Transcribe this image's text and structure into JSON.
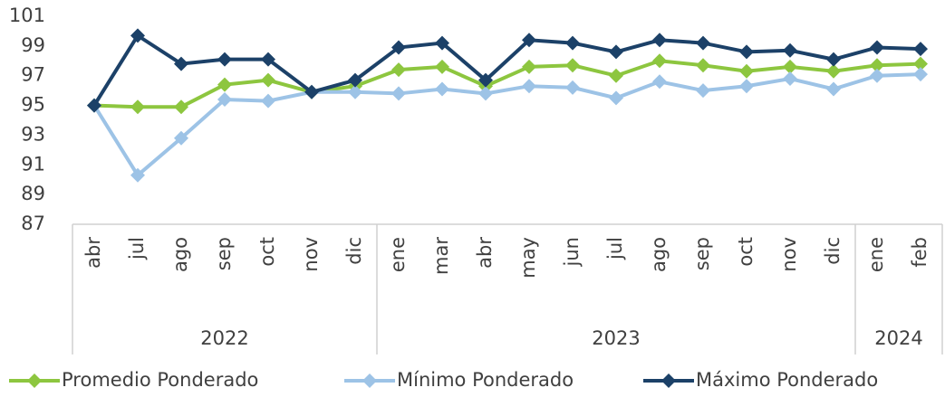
{
  "chart_data": {
    "type": "line",
    "groups": [
      {
        "name": "2022",
        "categories": [
          "abr",
          "jul",
          "ago",
          "sep",
          "oct",
          "nov",
          "dic"
        ]
      },
      {
        "name": "2023",
        "categories": [
          "ene",
          "mar",
          "abr",
          "may",
          "jun",
          "jul",
          "ago",
          "sep",
          "oct",
          "nov",
          "dic"
        ]
      },
      {
        "name": "2024",
        "categories": [
          "ene",
          "feb"
        ]
      }
    ],
    "series": [
      {
        "name": "Promedio Ponderado",
        "color": "#8dc63f",
        "values": [
          95,
          94.9,
          94.9,
          96.4,
          96.7,
          95.9,
          96.3,
          97.4,
          97.6,
          96.3,
          97.6,
          97.7,
          97.0,
          98.0,
          97.7,
          97.3,
          97.6,
          97.3,
          97.7,
          97.8
        ]
      },
      {
        "name": "Mínimo Ponderado",
        "color": "#9dc3e6",
        "values": [
          95,
          90.3,
          92.8,
          95.4,
          95.3,
          95.9,
          95.9,
          95.8,
          96.1,
          95.8,
          96.3,
          96.2,
          95.5,
          96.6,
          96.0,
          96.3,
          96.8,
          96.1,
          97.0,
          97.1
        ]
      },
      {
        "name": "Máximo Ponderado",
        "color": "#1c4168",
        "values": [
          95,
          99.7,
          97.8,
          98.1,
          98.1,
          95.9,
          96.7,
          98.9,
          99.2,
          96.7,
          99.4,
          99.2,
          98.6,
          99.4,
          99.2,
          98.6,
          98.7,
          98.1,
          98.9,
          98.8
        ]
      }
    ],
    "ylim": [
      87,
      101
    ],
    "yticks": [
      87,
      89,
      91,
      93,
      95,
      97,
      99,
      101
    ],
    "grid": false,
    "legend": "bottom"
  }
}
